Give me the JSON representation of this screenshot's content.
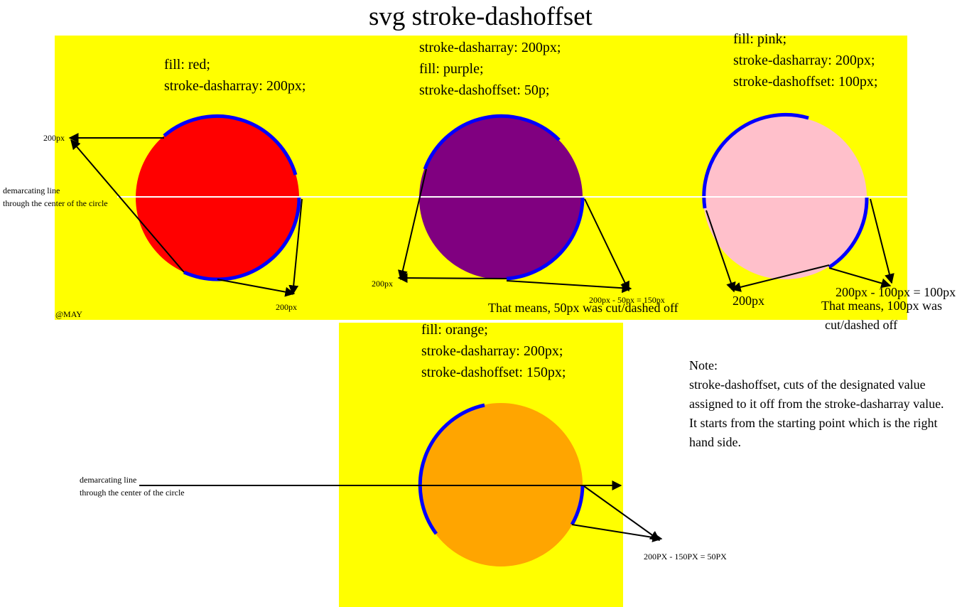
{
  "title": "svg stroke-dashoffset",
  "colors": {
    "panel": "#ffff00",
    "stroke": "#0000ff",
    "red": "#ff0000",
    "purple": "#800080",
    "pink": "#ffc0cb",
    "orange": "#ffa500"
  },
  "panel1": {
    "demarcation_line1": "demarcating line",
    "demarcation_line2": "through the center of the circle",
    "signature": "@MAY",
    "red": {
      "code1": "fill: red;",
      "code2": "stroke-dasharray: 200px;",
      "label_top": "200px",
      "label_bottom": "200px"
    },
    "purple": {
      "code1": "stroke-dasharray: 200px;",
      "code2": "fill: purple;",
      "code3": "stroke-dashoffset: 50p;",
      "label_left": "200px",
      "label_calc": "200px - 50px = 150px",
      "explanation": "That means, 50px was cut/dashed off"
    },
    "pink": {
      "code1": "fill: pink;",
      "code2": "stroke-dasharray: 200px;",
      "code3": "stroke-dashoffset: 100px;",
      "label_left": "200px",
      "label_calc": "200px - 100px = 100px",
      "explanation1": "That means, 100px was",
      "explanation2": "cut/dashed off"
    }
  },
  "panel2": {
    "demarcation_line1": "demarcating line",
    "demarcation_line2": "through the center of the circle",
    "orange": {
      "code1": "fill: orange;",
      "code2": "stroke-dasharray: 200px;",
      "code3": "stroke-dashoffset: 150px;",
      "label_calc": "200PX - 150PX = 50PX"
    }
  },
  "note": {
    "heading": "Note:",
    "line1": "stroke-dashoffset, cuts of the designated value",
    "line2": "assigned to it off  from the stroke-dasharray value.",
    "line3": "It starts from the starting point which is the right",
    "line4": "hand side."
  }
}
